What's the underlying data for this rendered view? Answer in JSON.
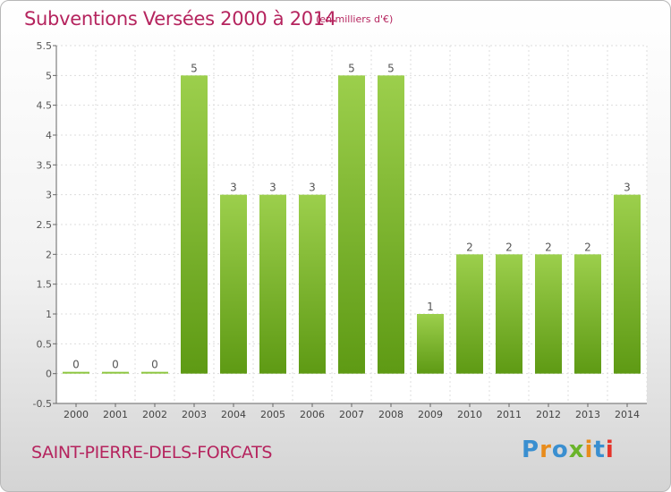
{
  "header": {
    "title": "Subventions Versées 2000 à 2014",
    "unit": "(en milliers d'€)"
  },
  "footer": {
    "commune": "SAINT-PIERRE-DELS-FORCATS",
    "logo_text": "Proxiti"
  },
  "colors": {
    "title": "#b5245e",
    "bar_top": "#9ccf4c",
    "bar_bottom": "#5e9a14",
    "grid": "#dddddd",
    "logo": [
      "#3a8fd0",
      "#e88c1c",
      "#3a8fd0",
      "#6ab42a",
      "#e88c1c",
      "#3a8fd0",
      "#e5342a"
    ]
  },
  "chart_data": {
    "type": "bar",
    "title": "Subventions Versées 2000 à 2014",
    "subtitle": "(en milliers d'€)",
    "categories": [
      "2000",
      "2001",
      "2002",
      "2003",
      "2004",
      "2005",
      "2006",
      "2007",
      "2008",
      "2009",
      "2010",
      "2011",
      "2012",
      "2013",
      "2014"
    ],
    "values": [
      0,
      0,
      0,
      5,
      3,
      3,
      3,
      5,
      5,
      1,
      2,
      2,
      2,
      2,
      3
    ],
    "data_labels": [
      "0",
      "0",
      "0",
      "5",
      "3",
      "3",
      "3",
      "5",
      "5",
      "1",
      "2",
      "2",
      "2",
      "2",
      "3"
    ],
    "ylim": [
      -0.5,
      5.5
    ],
    "yticks": [
      -0.5,
      0,
      0.5,
      1,
      1.5,
      2,
      2.5,
      3,
      3.5,
      4,
      4.5,
      5,
      5.5
    ],
    "ytick_labels": [
      "-0.5",
      "0",
      "0.5",
      "1",
      "1.5",
      "2",
      "2.5",
      "3",
      "3.5",
      "4",
      "4.5",
      "5",
      "5.5"
    ],
    "grid": true,
    "legend": "none"
  }
}
